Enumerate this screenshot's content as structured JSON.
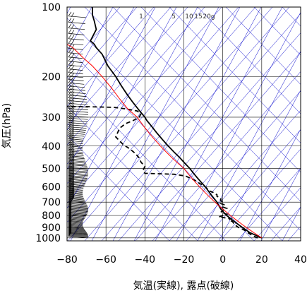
{
  "chart_data": {
    "type": "line",
    "title": "",
    "xlabel": "気温(実線), 露点(破線)",
    "ylabel": "気圧(hPa)",
    "xlim": [
      -80,
      40
    ],
    "ylim": [
      1030,
      100
    ],
    "y_scale": "log",
    "grid": true,
    "x_ticks": [
      "−80",
      "−60",
      "−40",
      "−20",
      "0",
      "20",
      "40"
    ],
    "x_tick_values": [
      -80,
      -60,
      -40,
      -20,
      0,
      20,
      40
    ],
    "y_ticks": [
      "100",
      "200",
      "300",
      "400",
      "500",
      "600",
      "700",
      "800",
      "900",
      "1000"
    ],
    "y_tick_values": [
      100,
      200,
      300,
      400,
      500,
      600,
      700,
      800,
      900,
      1000
    ],
    "mixing_ratio_labels": [
      "1",
      "5",
      "10",
      "15",
      "20g"
    ],
    "mixing_ratio_values": [
      1,
      5,
      10,
      15,
      20
    ],
    "series": [
      {
        "role": "temperature",
        "style": "solid",
        "color": "#000000",
        "points": [
          [
            20,
            1000
          ],
          [
            17,
            975
          ],
          [
            14,
            950
          ],
          [
            12,
            925
          ],
          [
            10,
            900
          ],
          [
            8,
            875
          ],
          [
            6,
            850
          ],
          [
            4,
            825
          ],
          [
            2,
            800
          ],
          [
            0.5,
            775
          ],
          [
            -1,
            750
          ],
          [
            -2,
            725
          ],
          [
            -3,
            700
          ],
          [
            -4.5,
            675
          ],
          [
            -6,
            650
          ],
          [
            -7.5,
            625
          ],
          [
            -9,
            600
          ],
          [
            -11,
            575
          ],
          [
            -13,
            550
          ],
          [
            -15,
            525
          ],
          [
            -17,
            500
          ],
          [
            -19.5,
            475
          ],
          [
            -22,
            450
          ],
          [
            -25,
            425
          ],
          [
            -28,
            400
          ],
          [
            -31,
            375
          ],
          [
            -34,
            350
          ],
          [
            -37,
            325
          ],
          [
            -39,
            310
          ],
          [
            -40,
            300
          ],
          [
            -43,
            280
          ],
          [
            -46,
            260
          ],
          [
            -49,
            240
          ],
          [
            -52,
            220
          ],
          [
            -55,
            200
          ],
          [
            -59,
            180
          ],
          [
            -62,
            160
          ],
          [
            -65,
            150
          ],
          [
            -66,
            145
          ],
          [
            -68,
            140
          ],
          [
            -65,
            125
          ],
          [
            -66,
            115
          ],
          [
            -67,
            108
          ],
          [
            -67,
            100
          ]
        ]
      },
      {
        "role": "dewpoint",
        "style": "dashed",
        "color": "#000000",
        "points": [
          [
            18,
            1000
          ],
          [
            15,
            975
          ],
          [
            13,
            950
          ],
          [
            11,
            925
          ],
          [
            8,
            900
          ],
          [
            6,
            875
          ],
          [
            5,
            850
          ],
          [
            3,
            835
          ],
          [
            4,
            825
          ],
          [
            -2,
            812
          ],
          [
            0,
            800
          ],
          [
            2,
            790
          ],
          [
            -1,
            775
          ],
          [
            0,
            760
          ],
          [
            2,
            745
          ],
          [
            0,
            735
          ],
          [
            1,
            720
          ],
          [
            -1,
            710
          ],
          [
            0,
            700
          ],
          [
            -1,
            690
          ],
          [
            -1,
            675
          ],
          [
            -3,
            660
          ],
          [
            -3,
            650
          ],
          [
            -5,
            635
          ],
          [
            -7,
            625
          ],
          [
            -9,
            600
          ],
          [
            -12,
            580
          ],
          [
            -14,
            565
          ],
          [
            -16,
            555
          ],
          [
            -19,
            540
          ],
          [
            -25,
            530
          ],
          [
            -40,
            525
          ],
          [
            -41,
            510
          ],
          [
            -40,
            490
          ],
          [
            -42,
            470
          ],
          [
            -43,
            450
          ],
          [
            -45,
            430
          ],
          [
            -48,
            410
          ],
          [
            -51,
            395
          ],
          [
            -53,
            380
          ],
          [
            -55,
            365
          ],
          [
            -54,
            350
          ],
          [
            -53,
            335
          ],
          [
            -50,
            320
          ],
          [
            -46,
            310
          ],
          [
            -43,
            300
          ],
          [
            -42,
            290
          ],
          [
            -44,
            282
          ],
          [
            -50,
            276
          ],
          [
            -56,
            272
          ],
          [
            -70,
            270
          ],
          [
            -80,
            270
          ]
        ]
      },
      {
        "role": "reference-curve",
        "style": "solid",
        "color": "#ff0000",
        "points": [
          [
            20,
            1000
          ],
          [
            18,
            975
          ],
          [
            16,
            950
          ],
          [
            14,
            925
          ],
          [
            12,
            900
          ],
          [
            10,
            875
          ],
          [
            8,
            850
          ],
          [
            6,
            825
          ],
          [
            4,
            800
          ],
          [
            2,
            775
          ],
          [
            0,
            750
          ],
          [
            -2,
            725
          ],
          [
            -4,
            700
          ],
          [
            -6,
            675
          ],
          [
            -8,
            650
          ],
          [
            -10,
            625
          ],
          [
            -12,
            600
          ],
          [
            -14,
            575
          ],
          [
            -16,
            550
          ],
          [
            -18,
            525
          ],
          [
            -20,
            500
          ],
          [
            -23,
            475
          ],
          [
            -26,
            450
          ],
          [
            -29,
            425
          ],
          [
            -32,
            400
          ],
          [
            -35,
            375
          ],
          [
            -38,
            350
          ],
          [
            -41,
            325
          ],
          [
            -44,
            300
          ],
          [
            -49,
            275
          ],
          [
            -53,
            250
          ],
          [
            -57,
            225
          ],
          [
            -62,
            200
          ],
          [
            -67,
            180
          ],
          [
            -72,
            165
          ],
          [
            -77,
            150
          ],
          [
            -80,
            145
          ]
        ]
      }
    ],
    "colors": {
      "grid": "#000000",
      "background_lines": "#0000cc",
      "temperature": "#000000",
      "dewpoint": "#000000",
      "reference": "#ff0000",
      "wind_barbs": "#000000"
    },
    "wind_barbs": "present at left edge"
  }
}
